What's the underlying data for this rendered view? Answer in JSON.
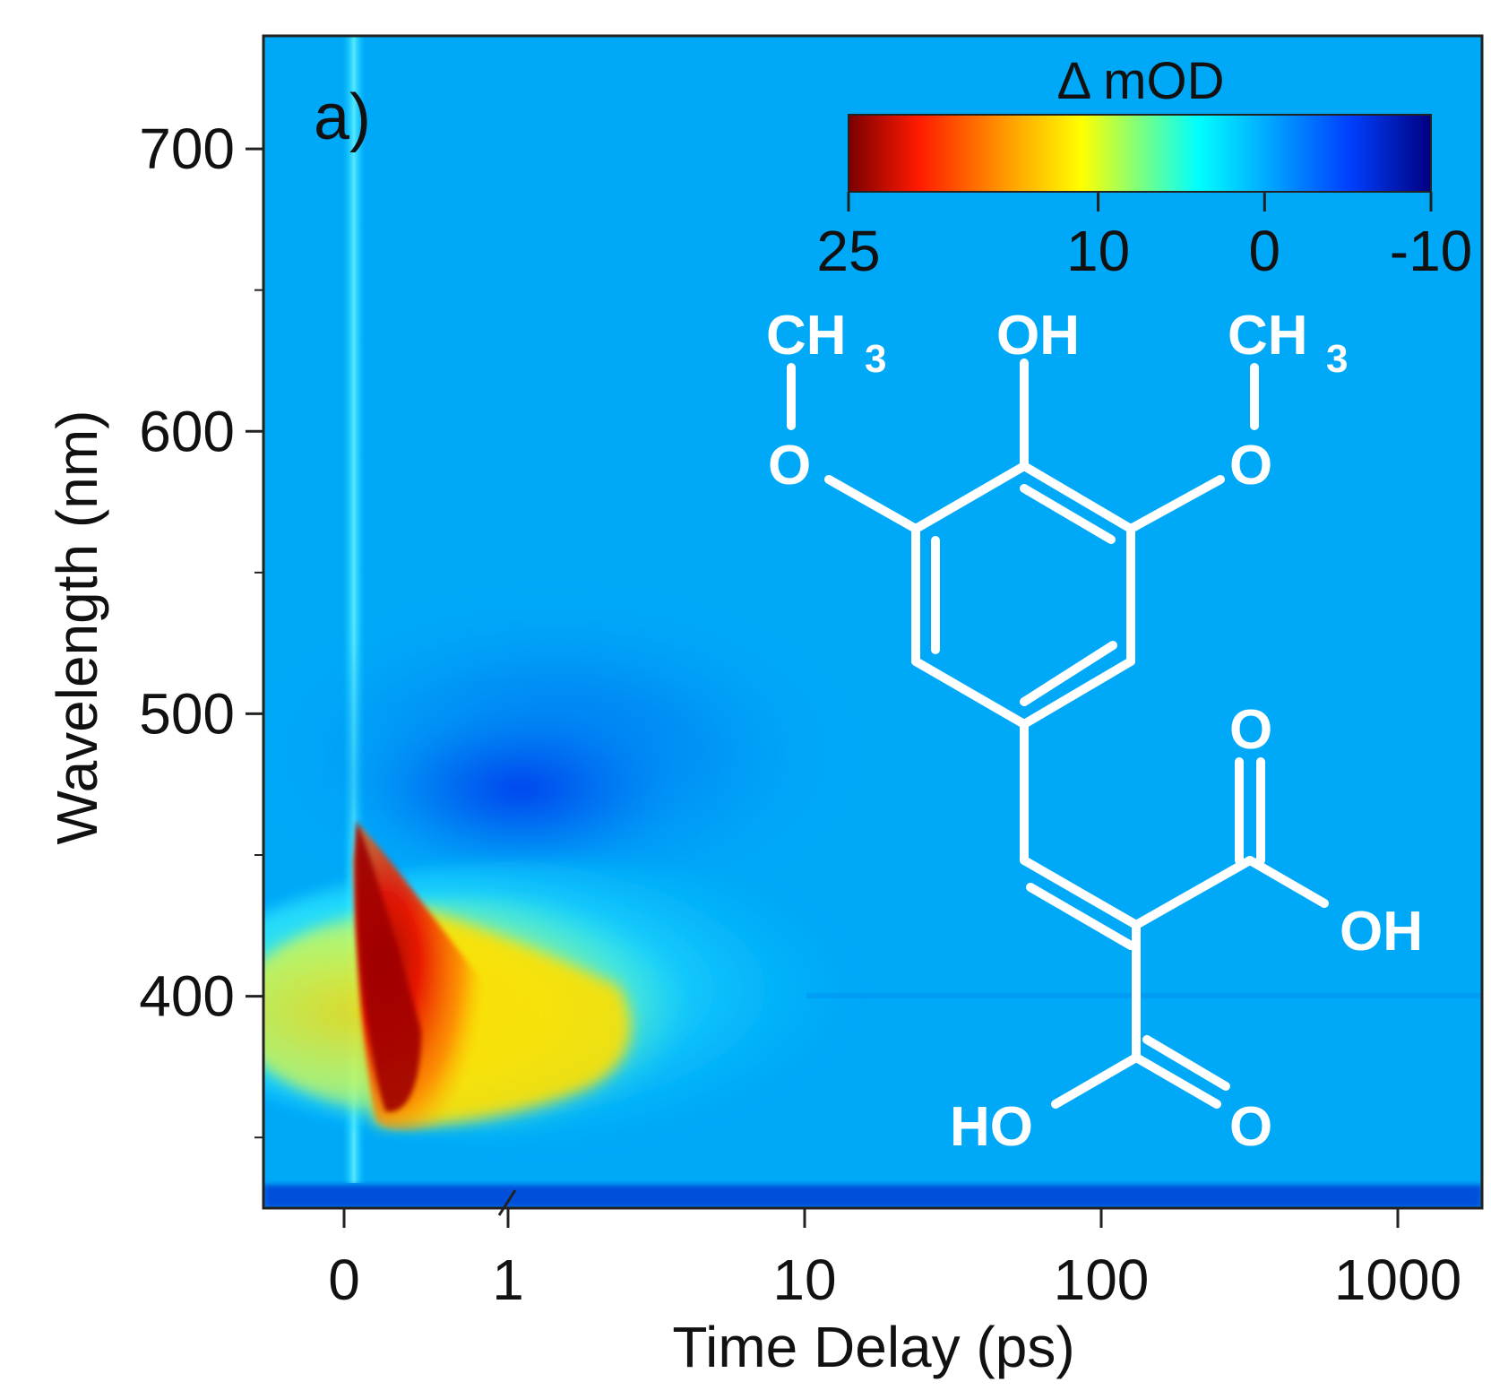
{
  "chart_data": {
    "type": "heatmap",
    "panel_label": "a)",
    "xlabel": "Time Delay (ps)",
    "ylabel": "Wavelength (nm)",
    "x_scale": "linear-log (linear near 0, logarithmic above 1 ps)",
    "xlim": [
      -0.3,
      1500
    ],
    "ylim": [
      325,
      740
    ],
    "x_ticks": [
      {
        "value": 0,
        "label": "0"
      },
      {
        "value": 1,
        "label": "1"
      },
      {
        "value": 10,
        "label": "10"
      },
      {
        "value": 100,
        "label": "100"
      },
      {
        "value": 1000,
        "label": "1000"
      }
    ],
    "y_ticks": [
      {
        "value": 400,
        "label": "400"
      },
      {
        "value": 500,
        "label": "500"
      },
      {
        "value": 600,
        "label": "600"
      },
      {
        "value": 700,
        "label": "700"
      }
    ],
    "colorbar": {
      "title": "Δ mOD",
      "range": [
        25,
        -10
      ],
      "ticks": [
        {
          "value": 25,
          "label": "25"
        },
        {
          "value": 10,
          "label": "10"
        },
        {
          "value": 0,
          "label": "0"
        },
        {
          "value": -10,
          "label": "-10"
        }
      ],
      "colors": [
        "#7a0000",
        "#ff1a00",
        "#ff9a00",
        "#ffff00",
        "#7dff7d",
        "#00ffff",
        "#00a8ff",
        "#0040ff",
        "#000080"
      ]
    },
    "features": [
      {
        "name": "positive band",
        "wavelength_range_nm": [
          345,
          460
        ],
        "time_range_ps": [
          0.05,
          30
        ],
        "peak_value_mOD": 25,
        "peak_time_ps": 0.1,
        "peak_wavelength_nm": 420
      },
      {
        "name": "negative band",
        "wavelength_range_nm": [
          430,
          540
        ],
        "time_range_ps": [
          0.3,
          50
        ],
        "peak_value_mOD": -5,
        "peak_time_ps": 1.2,
        "peak_wavelength_nm": 472
      }
    ],
    "grid": false
  },
  "molecule": {
    "labels": {
      "ch3_left": "CH",
      "ch3_left_sub": "3",
      "oh_top": "OH",
      "ch3_right": "CH",
      "ch3_right_sub": "3",
      "o_left": "O",
      "o_right": "O",
      "o_carbonyl_top": "O",
      "oh_right": "OH",
      "ho_bottom": "HO",
      "o_carbonyl_bottom": "O"
    }
  }
}
